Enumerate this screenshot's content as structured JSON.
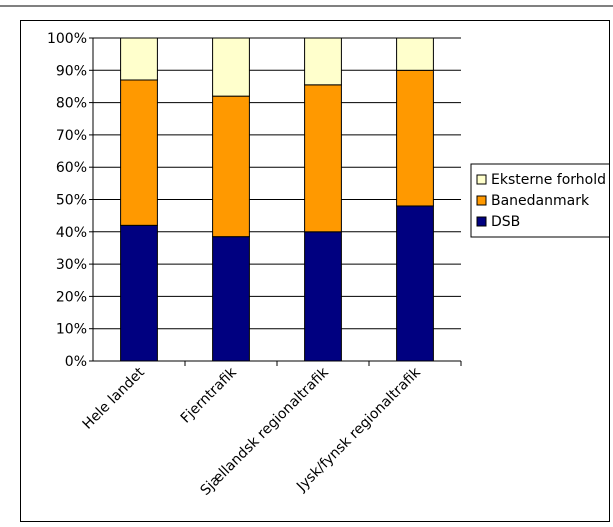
{
  "chart_data": {
    "type": "bar",
    "stacked": true,
    "categories": [
      "Hele landet",
      "Fjerntrafik",
      "Sjællandsk regionaltrafik",
      "Jysk/fynsk regionaltrafik"
    ],
    "series": [
      {
        "name": "DSB",
        "color": "#000080",
        "values": [
          42,
          38.5,
          40,
          48
        ]
      },
      {
        "name": "Banedanmark",
        "color": "#FF9900",
        "values": [
          45,
          43.5,
          45.5,
          42
        ]
      },
      {
        "name": "Eksterne forhold",
        "color": "#FFFFCC",
        "values": [
          13,
          18,
          14.5,
          10
        ]
      }
    ],
    "ylim": [
      0,
      100
    ],
    "yticks": [
      "0%",
      "10%",
      "20%",
      "30%",
      "40%",
      "50%",
      "60%",
      "70%",
      "80%",
      "90%",
      "100%"
    ],
    "grid": true,
    "legend": "right",
    "legend_order": [
      "Eksterne forhold",
      "Banedanmark",
      "DSB"
    ]
  }
}
